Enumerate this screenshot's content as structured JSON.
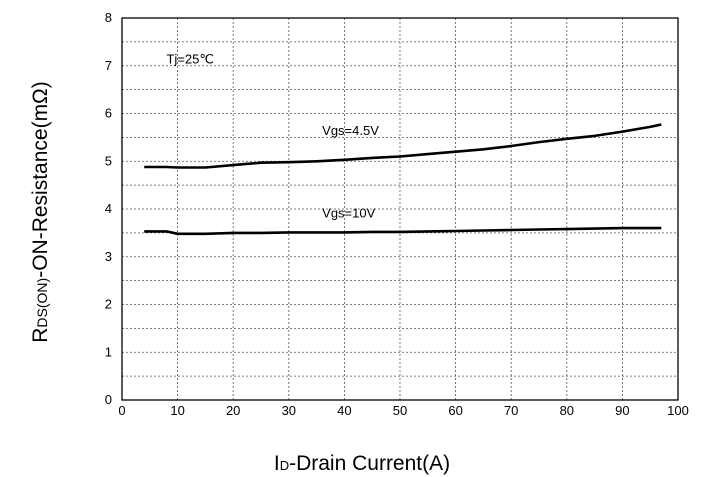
{
  "chart_data": {
    "type": "line",
    "title": "",
    "xlabel": {
      "main": "I",
      "sub": "D",
      "rest": "-Drain Current(A)"
    },
    "ylabel": {
      "main": "R",
      "sub": "DS(ON)",
      "rest": "-ON-Resistance(mΩ)"
    },
    "xlim": [
      0,
      100
    ],
    "ylim": [
      0,
      8
    ],
    "xticks": [
      "0",
      "10",
      "20",
      "30",
      "40",
      "50",
      "60",
      "70",
      "80",
      "90",
      "100"
    ],
    "yticks": [
      "0",
      "1",
      "2",
      "3",
      "4",
      "5",
      "6",
      "7",
      "8"
    ],
    "grid": true,
    "grid_style": "dotted",
    "annotation": "Tj=25℃",
    "series": [
      {
        "name": "Vgs=4.5V",
        "color": "#000000",
        "x": [
          4,
          8,
          10,
          15,
          20,
          25,
          30,
          35,
          40,
          45,
          50,
          55,
          60,
          65,
          70,
          75,
          80,
          85,
          90,
          95,
          97
        ],
        "y": [
          4.88,
          4.88,
          4.87,
          4.87,
          4.92,
          4.97,
          4.98,
          5.0,
          5.03,
          5.07,
          5.1,
          5.15,
          5.2,
          5.25,
          5.32,
          5.4,
          5.47,
          5.53,
          5.62,
          5.72,
          5.77
        ]
      },
      {
        "name": "Vgs=10V",
        "color": "#000000",
        "x": [
          4,
          8,
          10,
          15,
          20,
          25,
          30,
          35,
          40,
          45,
          50,
          55,
          60,
          65,
          70,
          75,
          80,
          85,
          90,
          95,
          97
        ],
        "y": [
          3.53,
          3.53,
          3.48,
          3.48,
          3.5,
          3.5,
          3.51,
          3.51,
          3.51,
          3.52,
          3.52,
          3.53,
          3.54,
          3.55,
          3.56,
          3.57,
          3.58,
          3.59,
          3.6,
          3.6,
          3.6
        ]
      }
    ]
  }
}
